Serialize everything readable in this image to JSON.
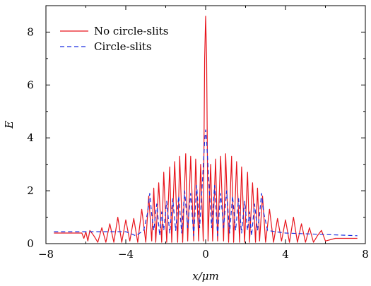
{
  "chart_data": {
    "type": "line",
    "xlabel": "x/μm",
    "ylabel": "E",
    "xlim": [
      -8,
      8
    ],
    "ylim": [
      0,
      9
    ],
    "xticks": [
      -8,
      -4,
      0,
      4,
      8
    ],
    "yticks": [
      0,
      2,
      4,
      6,
      8
    ],
    "xtick_labels": [
      "−8",
      "−4",
      "0",
      "4",
      "8"
    ],
    "ytick_labels": [
      "0",
      "2",
      "4",
      "6",
      "8"
    ],
    "grid": false,
    "legend_position": "top-left",
    "series": [
      {
        "name": "No circle-slits",
        "color": "#e8141c",
        "dash": "solid",
        "x": [
          -7.6,
          -6.2,
          -6.1,
          -6.0,
          -5.9,
          -5.8,
          -5.6,
          -5.4,
          -5.2,
          -5.0,
          -4.8,
          -4.6,
          -4.4,
          -4.2,
          -4.0,
          -3.8,
          -3.6,
          -3.4,
          -3.2,
          -3.0,
          -2.85,
          -2.7,
          -2.6,
          -2.5,
          -2.35,
          -2.2,
          -2.1,
          -1.95,
          -1.8,
          -1.7,
          -1.55,
          -1.4,
          -1.3,
          -1.15,
          -1.0,
          -0.9,
          -0.75,
          -0.6,
          -0.5,
          -0.35,
          -0.25,
          -0.12,
          -0.05,
          0.0,
          0.05,
          0.12,
          0.25,
          0.35,
          0.5,
          0.6,
          0.75,
          0.9,
          1.0,
          1.15,
          1.3,
          1.4,
          1.55,
          1.7,
          1.8,
          1.95,
          2.1,
          2.2,
          2.35,
          2.5,
          2.6,
          2.7,
          2.85,
          3.0,
          3.2,
          3.4,
          3.6,
          3.8,
          4.0,
          4.2,
          4.4,
          4.6,
          4.8,
          5.0,
          5.2,
          5.4,
          5.6,
          5.8,
          6.0,
          6.5,
          7.6
        ],
        "y": [
          0.4,
          0.4,
          0.2,
          0.45,
          0.1,
          0.5,
          0.3,
          0.05,
          0.6,
          0.05,
          0.75,
          0.05,
          1.0,
          0.05,
          0.9,
          0.1,
          0.95,
          0.05,
          1.3,
          0.05,
          1.8,
          0.1,
          2.1,
          0.05,
          2.3,
          0.05,
          2.7,
          0.05,
          2.9,
          0.05,
          3.1,
          0.05,
          3.3,
          0.05,
          3.4,
          0.1,
          3.3,
          0.1,
          3.2,
          0.1,
          3.0,
          0.1,
          7.0,
          8.6,
          7.0,
          0.1,
          3.0,
          0.1,
          3.2,
          0.1,
          3.3,
          0.1,
          3.4,
          0.05,
          3.3,
          0.05,
          3.1,
          0.05,
          2.9,
          0.05,
          2.7,
          0.05,
          2.3,
          0.05,
          2.1,
          0.1,
          1.8,
          0.05,
          1.3,
          0.05,
          0.95,
          0.1,
          0.9,
          0.05,
          1.0,
          0.05,
          0.75,
          0.05,
          0.6,
          0.05,
          0.3,
          0.5,
          0.1,
          0.2,
          0.2
        ]
      },
      {
        "name": "Circle-slits",
        "color": "#1a2ee0",
        "dash": "6,4",
        "x": [
          -7.6,
          -4.0,
          -3.5,
          -3.1,
          -2.9,
          -2.8,
          -2.7,
          -2.6,
          -2.45,
          -2.3,
          -2.2,
          -2.1,
          -1.95,
          -1.8,
          -1.65,
          -1.5,
          -1.35,
          -1.2,
          -1.05,
          -0.9,
          -0.75,
          -0.6,
          -0.45,
          -0.3,
          -0.15,
          -0.05,
          0.0,
          0.05,
          0.15,
          0.3,
          0.45,
          0.6,
          0.75,
          0.9,
          1.05,
          1.2,
          1.35,
          1.5,
          1.65,
          1.8,
          1.95,
          2.1,
          2.2,
          2.3,
          2.45,
          2.6,
          2.7,
          2.8,
          2.9,
          3.1,
          3.5,
          4.0,
          7.6
        ],
        "y": [
          0.45,
          0.45,
          0.3,
          0.5,
          1.2,
          1.9,
          1.1,
          0.5,
          1.5,
          0.3,
          1.2,
          0.5,
          1.6,
          0.4,
          1.7,
          0.5,
          1.8,
          0.4,
          2.0,
          0.6,
          1.9,
          0.3,
          2.2,
          0.6,
          2.5,
          3.9,
          4.3,
          3.9,
          2.5,
          0.6,
          2.2,
          0.3,
          1.9,
          0.6,
          2.0,
          0.4,
          1.8,
          0.5,
          1.7,
          0.4,
          1.6,
          0.5,
          1.2,
          0.3,
          1.5,
          0.5,
          1.1,
          1.9,
          1.2,
          0.5,
          0.45,
          0.4,
          0.3
        ]
      }
    ]
  }
}
